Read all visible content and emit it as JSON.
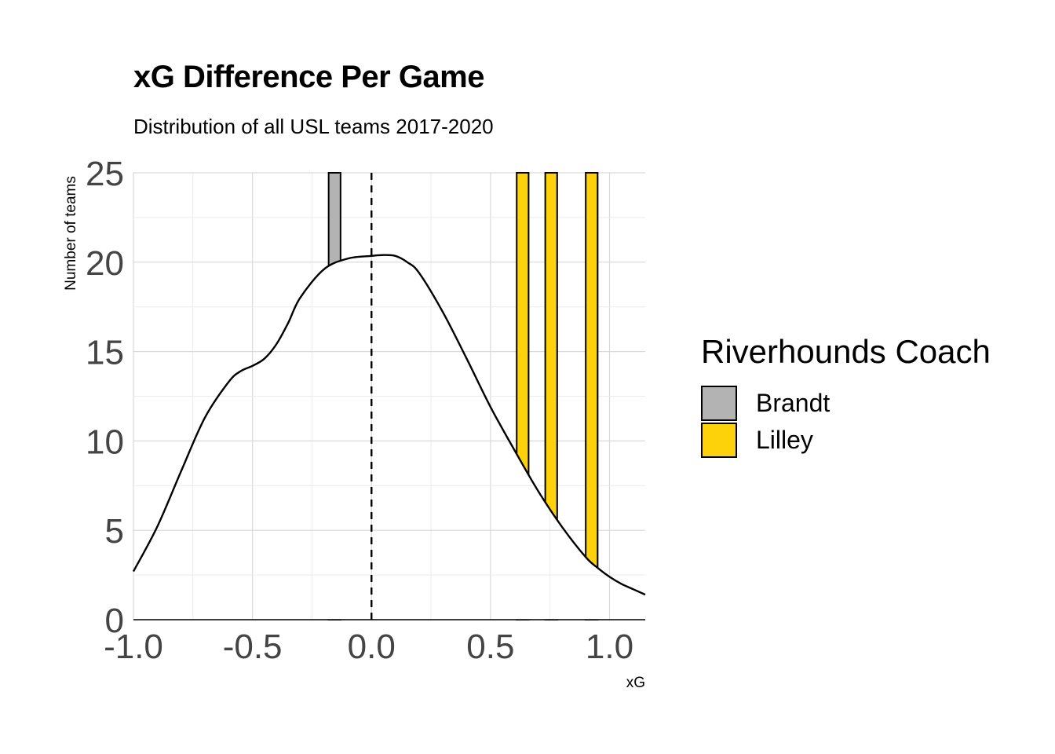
{
  "chart_data": {
    "type": "bar",
    "title": "xG Difference Per Game",
    "subtitle": "Distribution of all USL teams 2017-2020",
    "xlabel": "xG",
    "ylabel": "Number of teams",
    "xlim": [
      -1.0,
      1.15
    ],
    "ylim": [
      0,
      25
    ],
    "x_ticks": [
      "-1.0",
      "-0.5",
      "0.0",
      "0.5",
      "1.0"
    ],
    "x_tick_values": [
      -1.0,
      -0.5,
      0.0,
      0.5,
      1.0
    ],
    "y_ticks": [
      "0",
      "5",
      "10",
      "15",
      "20",
      "25"
    ],
    "y_tick_values": [
      0,
      5,
      10,
      15,
      20,
      25
    ],
    "grid": true,
    "reference_line": {
      "x": 0.0,
      "style": "dashed"
    },
    "legend": {
      "title": "Riverhounds Coach",
      "placement": "right",
      "entries": [
        {
          "name": "Brandt",
          "color": "#b3b3b3"
        },
        {
          "name": "Lilley",
          "color": "#fdd20a"
        }
      ]
    },
    "bars": [
      {
        "coach": "Brandt",
        "x_start": -0.18,
        "x_end": -0.13,
        "top": 25
      },
      {
        "coach": "Lilley",
        "x_start": 0.61,
        "x_end": 0.66,
        "top": 25
      },
      {
        "coach": "Lilley",
        "x_start": 0.73,
        "x_end": 0.78,
        "top": 25
      },
      {
        "coach": "Lilley",
        "x_start": 0.9,
        "x_end": 0.95,
        "top": 25
      }
    ],
    "density_curve": {
      "x": [
        -1.0,
        -0.9,
        -0.8,
        -0.7,
        -0.6,
        -0.55,
        -0.5,
        -0.45,
        -0.4,
        -0.35,
        -0.3,
        -0.2,
        -0.1,
        0.0,
        0.05,
        0.1,
        0.15,
        0.2,
        0.3,
        0.4,
        0.5,
        0.6,
        0.7,
        0.8,
        0.9,
        0.95,
        1.0,
        1.05,
        1.1,
        1.15
      ],
      "y": [
        2.7,
        5.2,
        8.3,
        11.3,
        13.3,
        13.9,
        14.2,
        14.6,
        15.4,
        16.6,
        18.0,
        19.6,
        20.2,
        20.35,
        20.4,
        20.35,
        20.0,
        19.4,
        17.2,
        14.6,
        11.9,
        9.5,
        7.2,
        5.2,
        3.5,
        2.9,
        2.4,
        2.0,
        1.7,
        1.4
      ]
    }
  }
}
